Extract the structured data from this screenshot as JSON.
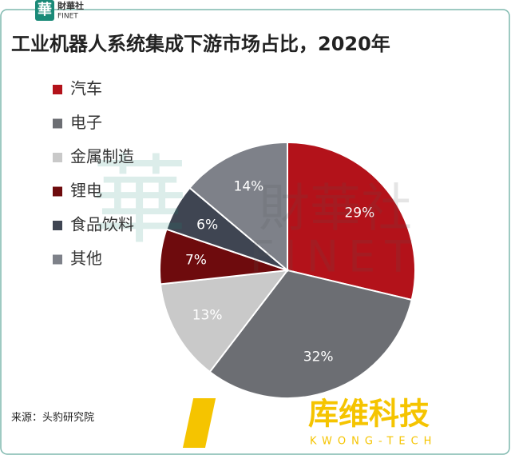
{
  "logo": {
    "mark": "華",
    "name": "財華社",
    "sub": "FINET"
  },
  "chart_data": {
    "type": "pie",
    "title": "工业机器人系统集成下游市场占比，2020年",
    "categories": [
      "汽车",
      "电子",
      "金属制造",
      "锂电",
      "食品饮料",
      "其他"
    ],
    "values": [
      29,
      32,
      13,
      7,
      6,
      14
    ],
    "value_labels": [
      "29%",
      "32%",
      "13%",
      "7%",
      "6%",
      "14%"
    ],
    "colors": [
      "#b3121a",
      "#6c6e73",
      "#c9c9c9",
      "#6e0b0d",
      "#3f4552",
      "#7e8189"
    ],
    "legend": "left",
    "source": "来源：头豹研究院"
  },
  "brand": {
    "name": "库维科技",
    "sub": "KWONG-TECH"
  }
}
